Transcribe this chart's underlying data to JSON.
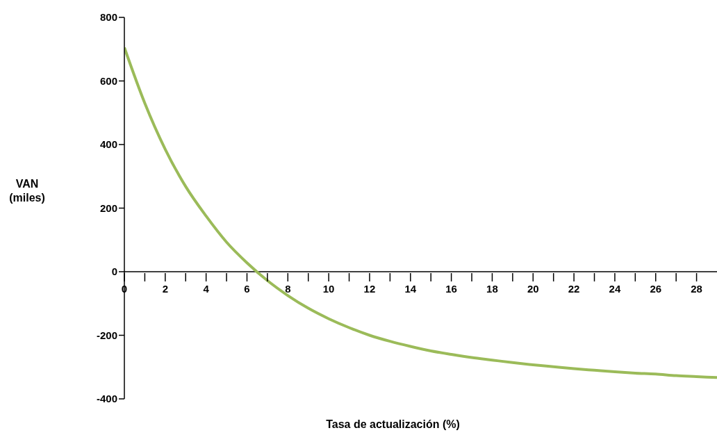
{
  "chart_data": {
    "type": "line",
    "xlabel": "Tasa de actualización (%)",
    "ylabel": "VAN (miles)",
    "x": [
      0,
      1,
      2,
      3,
      4,
      5,
      6,
      7,
      8,
      9,
      10,
      11,
      12,
      13,
      14,
      15,
      16,
      17,
      18,
      19,
      20,
      21,
      22,
      23,
      24,
      25,
      26,
      27,
      28,
      29
    ],
    "series": [
      {
        "color": "#9bbb59",
        "values": [
          705,
          530,
          385,
          268,
          175,
          93,
          28,
          -28,
          -75,
          -115,
          -148,
          -176,
          -200,
          -219,
          -235,
          -249,
          -260,
          -270,
          -278,
          -286,
          -293,
          -299,
          -305,
          -310,
          -315,
          -319,
          -322,
          -327,
          -330,
          -333
        ]
      }
    ],
    "xlim": [
      0,
      29
    ],
    "ylim": [
      -400,
      800
    ],
    "xticks": [
      0,
      {
        "value": 1,
        "label": null
      },
      2,
      {
        "value": 3,
        "label": null
      },
      4,
      {
        "value": 5,
        "label": null
      },
      6,
      {
        "value": 7,
        "label": null
      },
      8,
      {
        "value": 9,
        "label": null
      },
      10,
      {
        "value": 11,
        "label": null
      },
      12,
      {
        "value": 13,
        "label": null
      },
      14,
      {
        "value": 15,
        "label": null
      },
      16,
      {
        "value": 17,
        "label": null
      },
      18,
      {
        "value": 19,
        "label": null
      },
      20,
      {
        "value": 21,
        "label": null
      },
      22,
      {
        "value": 23,
        "label": null
      },
      24,
      {
        "value": 25,
        "label": null
      },
      26,
      {
        "value": 27,
        "label": null
      },
      28
    ],
    "yticks": [
      -400,
      -200,
      0,
      200,
      400,
      600,
      800
    ],
    "grid": false,
    "legend": false,
    "marker": "none",
    "line_style": "solid"
  }
}
